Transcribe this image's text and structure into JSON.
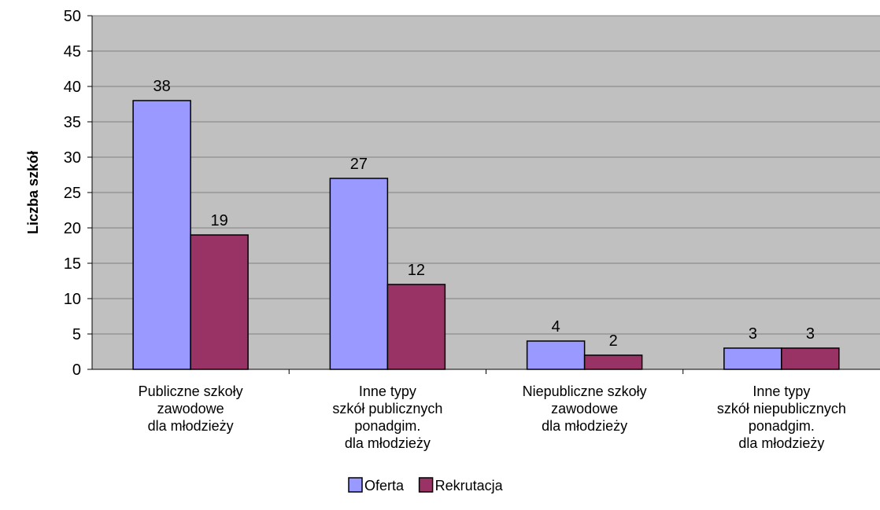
{
  "chart_data": {
    "type": "bar",
    "title": "",
    "xlabel": "",
    "ylabel": "Liczba szkół",
    "ylim": [
      0,
      50
    ],
    "yticks": [
      0,
      5,
      10,
      15,
      20,
      25,
      30,
      35,
      40,
      45,
      50
    ],
    "grid": "horizontal",
    "legend_position": "bottom-center",
    "categories": [
      [
        "Publiczne szkoły",
        "zawodowe",
        "dla młodzieży"
      ],
      [
        "Inne typy",
        "szkół publicznych",
        "ponadgim.",
        "dla młodzieży"
      ],
      [
        "Niepubliczne szkoły",
        "zawodowe",
        "dla młodzieży"
      ],
      [
        "Inne typy",
        "szkół niepublicznych",
        "ponadgim.",
        "dla młodzieży"
      ]
    ],
    "series": [
      {
        "name": "Oferta",
        "color": "#9999ff",
        "values": [
          38,
          27,
          4,
          3
        ]
      },
      {
        "name": "Rekrutacja",
        "color": "#993366",
        "values": [
          19,
          12,
          2,
          3
        ]
      }
    ],
    "data_labels": true,
    "plot_background": "#c0c0c0",
    "grid_color": "#808080"
  }
}
